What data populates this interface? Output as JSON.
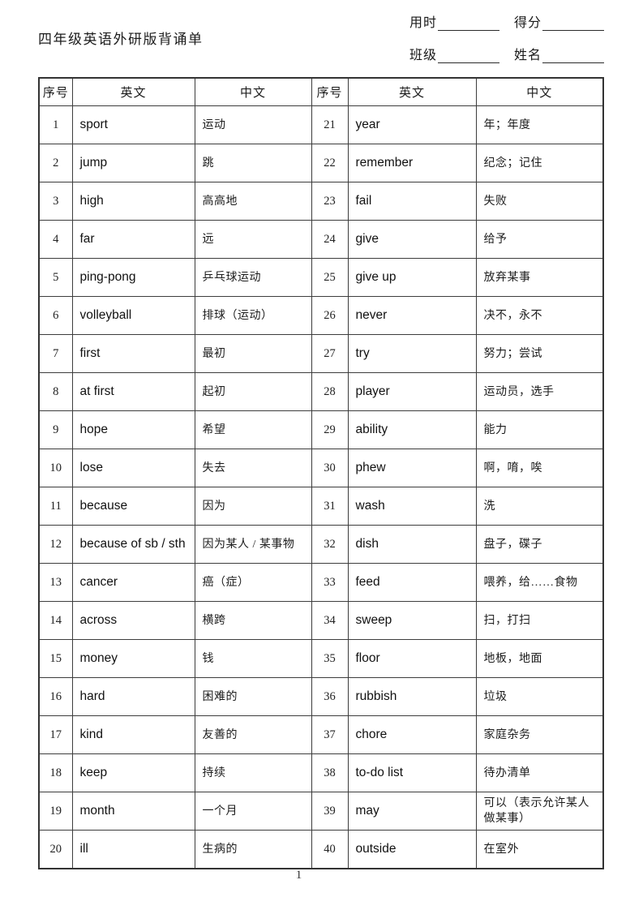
{
  "page": {
    "title": "四年级英语外研版背诵单",
    "page_number": "1"
  },
  "header_fields": {
    "time_label": "用时",
    "score_label": "得分",
    "class_label": "班级",
    "name_label": "姓名"
  },
  "table": {
    "columns": [
      "序号",
      "英文",
      "中文",
      "序号",
      "英文",
      "中文"
    ],
    "rows": [
      {
        "no1": "1",
        "en1": "sport",
        "zh1": "运动",
        "no2": "21",
        "en2": "year",
        "zh2": "年；年度"
      },
      {
        "no1": "2",
        "en1": "jump",
        "zh1": "跳",
        "no2": "22",
        "en2": "remember",
        "zh2": "纪念；记住"
      },
      {
        "no1": "3",
        "en1": "high",
        "zh1": "高高地",
        "no2": "23",
        "en2": "fail",
        "zh2": "失败"
      },
      {
        "no1": "4",
        "en1": "far",
        "zh1": "远",
        "no2": "24",
        "en2": "give",
        "zh2": "给予"
      },
      {
        "no1": "5",
        "en1": "ping-pong",
        "zh1": "乒乓球运动",
        "no2": "25",
        "en2": "give up",
        "zh2": "放弃某事"
      },
      {
        "no1": "6",
        "en1": "volleyball",
        "zh1": "排球（运动）",
        "no2": "26",
        "en2": "never",
        "zh2": "决不，永不"
      },
      {
        "no1": "7",
        "en1": "first",
        "zh1": "最初",
        "no2": "27",
        "en2": "try",
        "zh2": "努力；尝试"
      },
      {
        "no1": "8",
        "en1": "at first",
        "zh1": "起初",
        "no2": "28",
        "en2": "player",
        "zh2": "运动员，选手"
      },
      {
        "no1": "9",
        "en1": "hope",
        "zh1": "希望",
        "no2": "29",
        "en2": "ability",
        "zh2": "能力"
      },
      {
        "no1": "10",
        "en1": "lose",
        "zh1": "失去",
        "no2": "30",
        "en2": "phew",
        "zh2": "啊，唷，唉"
      },
      {
        "no1": "11",
        "en1": "because",
        "zh1": "因为",
        "no2": "31",
        "en2": "wash",
        "zh2": "洗"
      },
      {
        "no1": "12",
        "en1": "because of sb / sth",
        "zh1": "因为某人 / 某事物",
        "no2": "32",
        "en2": "dish",
        "zh2": "盘子，碟子"
      },
      {
        "no1": "13",
        "en1": "cancer",
        "zh1": "癌（症）",
        "no2": "33",
        "en2": "feed",
        "zh2": "喂养，给……食物"
      },
      {
        "no1": "14",
        "en1": "across",
        "zh1": "横跨",
        "no2": "34",
        "en2": "sweep",
        "zh2": "扫，打扫"
      },
      {
        "no1": "15",
        "en1": "money",
        "zh1": "钱",
        "no2": "35",
        "en2": "floor",
        "zh2": "地板，地面"
      },
      {
        "no1": "16",
        "en1": "hard",
        "zh1": "困难的",
        "no2": "36",
        "en2": "rubbish",
        "zh2": "垃圾"
      },
      {
        "no1": "17",
        "en1": "kind",
        "zh1": "友善的",
        "no2": "37",
        "en2": "chore",
        "zh2": "家庭杂务"
      },
      {
        "no1": "18",
        "en1": "keep",
        "zh1": "持续",
        "no2": "38",
        "en2": "to-do list",
        "zh2": "待办清单"
      },
      {
        "no1": "19",
        "en1": "month",
        "zh1": "一个月",
        "no2": "39",
        "en2": "may",
        "zh2": "可以（表示允许某人做某事）"
      },
      {
        "no1": "20",
        "en1": "ill",
        "zh1": "生病的",
        "no2": "40",
        "en2": "outside",
        "zh2": "在室外"
      }
    ]
  }
}
